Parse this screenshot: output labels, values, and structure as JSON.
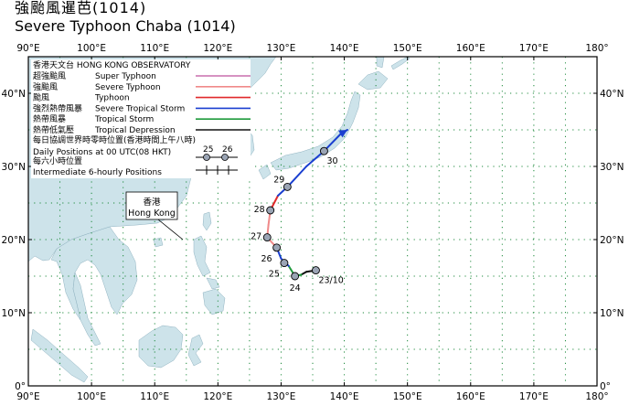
{
  "title": {
    "zh": "強颱風暹芭(1014)",
    "en": "Severe Typhoon Chaba (1014)"
  },
  "map": {
    "lon_range": [
      90,
      180
    ],
    "lat_range": [
      0,
      45
    ],
    "lon_ticks": [
      "90°E",
      "100°E",
      "110°E",
      "120°E",
      "130°E",
      "140°E",
      "150°E",
      "160°E",
      "170°E",
      "180°"
    ],
    "lat_ticks": [
      "0°",
      "10°N",
      "20°N",
      "30°N",
      "40°N"
    ],
    "colors": {
      "ocean": "#ffffff",
      "land": "#cde3ea",
      "grid": "#1e8a3c",
      "frame": "#000000"
    }
  },
  "legend": {
    "header": "香港天文台 HONG KONG OBSERVATORY",
    "items": [
      {
        "zh": "超強颱風",
        "en": "Super Typhoon",
        "color": "#c86fae"
      },
      {
        "zh": "強颱風",
        "en": "Severe Typhoon",
        "color": "#f08a8a"
      },
      {
        "zh": "颱風",
        "en": "Typhoon",
        "color": "#e0282a"
      },
      {
        "zh": "強烈熱帶風暴",
        "en": "Severe Tropical Storm",
        "color": "#1a3fd0"
      },
      {
        "zh": "熱帶風暴",
        "en": "Tropical Storm",
        "color": "#1f9a3c"
      },
      {
        "zh": "熱帶低氣壓",
        "en": "Tropical Depression",
        "color": "#111111"
      }
    ],
    "daily_zh": "每日協調世界時零時位置(香港時間上午八時)",
    "daily_en": "Daily Positions at 00 UTC(08 HKT)",
    "daily_sample_labels": [
      "25",
      "26"
    ],
    "six_hourly_zh": "每六小時位置",
    "six_hourly_en": "Intermediate 6-hourly Positions"
  },
  "hong_kong_label": {
    "zh": "香港",
    "en": "Hong Kong"
  },
  "track": {
    "name": "Chaba (1014)",
    "points": [
      {
        "lon": 135.5,
        "lat": 15.8,
        "cat": "TD"
      },
      {
        "lon": 134.0,
        "lat": 15.6,
        "cat": "TD"
      },
      {
        "lon": 133.2,
        "lat": 15.2,
        "cat": "TD"
      },
      {
        "lon": 132.2,
        "lat": 15.0,
        "cat": "TS"
      },
      {
        "lon": 131.2,
        "lat": 16.4,
        "cat": "TS"
      },
      {
        "lon": 130.0,
        "lat": 17.4,
        "cat": "STS"
      },
      {
        "lon": 129.3,
        "lat": 18.9,
        "cat": "STS"
      },
      {
        "lon": 127.8,
        "lat": 20.3,
        "cat": "SevT"
      },
      {
        "lon": 128.0,
        "lat": 22.0,
        "cat": "SevT"
      },
      {
        "lon": 128.3,
        "lat": 24.0,
        "cat": "SevT"
      },
      {
        "lon": 129.5,
        "lat": 26.0,
        "cat": "T"
      },
      {
        "lon": 131.0,
        "lat": 27.2,
        "cat": "STS"
      },
      {
        "lon": 134.0,
        "lat": 30.0,
        "cat": "STS"
      },
      {
        "lon": 136.8,
        "lat": 32.1,
        "cat": "STS"
      },
      {
        "lon": 139.5,
        "lat": 34.5,
        "cat": "STS"
      },
      {
        "lon": 140.5,
        "lat": 35.0,
        "cat": "STS"
      }
    ],
    "daily_positions": [
      {
        "label": "23/10",
        "lon": 135.5,
        "lat": 15.8,
        "dir": "below-right"
      },
      {
        "label": "24",
        "lon": 132.2,
        "lat": 15.0,
        "dir": "below"
      },
      {
        "label": "25",
        "lon": 130.5,
        "lat": 16.8,
        "dir": "below-left"
      },
      {
        "label": "26",
        "lon": 129.3,
        "lat": 18.9,
        "dir": "below-left"
      },
      {
        "label": "27",
        "lon": 127.8,
        "lat": 20.3,
        "dir": "left"
      },
      {
        "label": "28",
        "lon": 128.3,
        "lat": 24.0,
        "dir": "left"
      },
      {
        "label": "29",
        "lon": 131.0,
        "lat": 27.2,
        "dir": "up-left"
      },
      {
        "label": "30",
        "lon": 136.8,
        "lat": 32.1,
        "dir": "below-right"
      }
    ]
  }
}
